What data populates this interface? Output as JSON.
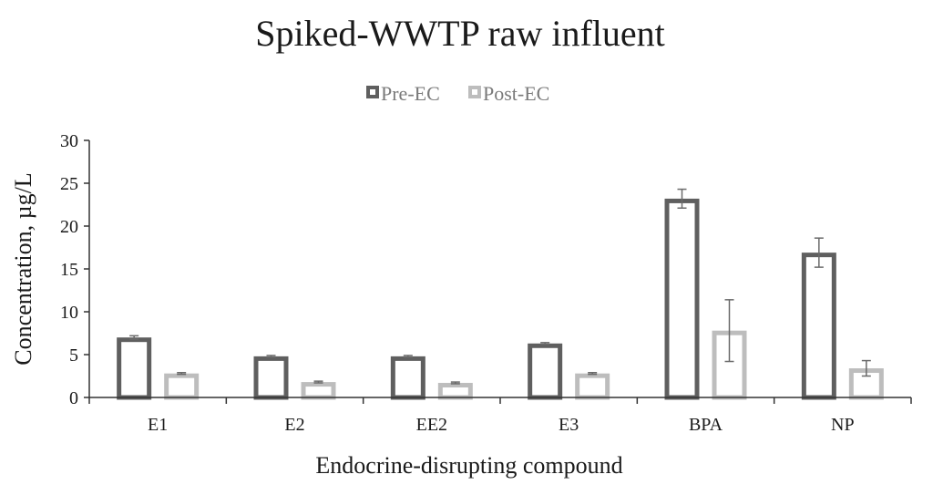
{
  "chart_data": {
    "type": "bar",
    "title": "Spiked-WWTP raw influent",
    "xlabel": "Endocrine-disrupting compound",
    "ylabel": "Concentration, µg/L",
    "ylim": [
      0,
      30
    ],
    "yticks": [
      0,
      5,
      10,
      15,
      20,
      25,
      30
    ],
    "grid": false,
    "legend_position": "top-center",
    "categories": [
      "E1",
      "E2",
      "EE2",
      "E3",
      "BPA",
      "NP"
    ],
    "series": [
      {
        "name": "Pre-EC",
        "color": "#5f5f5f",
        "values": [
          7.0,
          4.8,
          4.8,
          6.3,
          23.2,
          16.9
        ],
        "errors": [
          0.2,
          0.1,
          0.1,
          0.1,
          1.1,
          1.7
        ]
      },
      {
        "name": "Post-EC",
        "color": "#bdbdbd",
        "values": [
          2.8,
          1.8,
          1.7,
          2.8,
          7.8,
          3.4
        ],
        "errors": [
          0.1,
          0.1,
          0.1,
          0.1,
          3.6,
          0.9
        ]
      }
    ]
  }
}
